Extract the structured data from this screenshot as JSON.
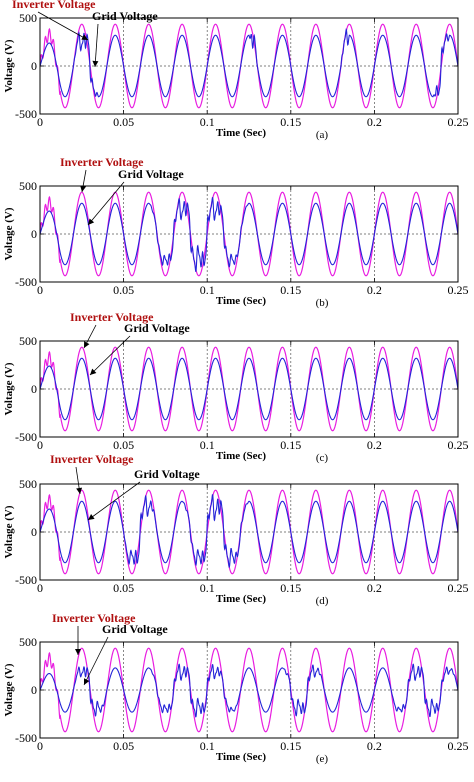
{
  "chart_data": [
    {
      "type": "line",
      "panel_label": "(a)",
      "xlabel": "Time (Sec)",
      "ylabel": "Voltage (V)",
      "xlim": [
        0,
        0.25
      ],
      "ylim": [
        -500,
        500
      ],
      "xticks": [
        "0",
        "0.05",
        "0.1",
        "0.15",
        "0.2",
        "0.25"
      ],
      "yticks": [
        "500",
        "0",
        "-500"
      ],
      "grid": true,
      "inverter_annotation": "Inverter Voltage",
      "grid_annotation": "Grid Voltage",
      "frequency_hz": 50,
      "series": [
        {
          "name": "Inverter Voltage",
          "color": "#e81ee0",
          "amplitude": 435,
          "waveform": "sine"
        },
        {
          "name": "Grid Voltage",
          "color": "#2424d8",
          "amplitude": 320,
          "waveform": "sine with distortion",
          "distortion_intervals": [
            [
              0.02,
              0.035
            ],
            [
              0.125,
              0.13
            ],
            [
              0.18,
              0.185
            ],
            [
              0.235,
              0.245
            ]
          ]
        }
      ]
    },
    {
      "type": "line",
      "panel_label": "(b)",
      "xlabel": "Time (Sec)",
      "ylabel": "Voltage (V)",
      "xlim": [
        0,
        0.25
      ],
      "ylim": [
        -500,
        500
      ],
      "xticks": [
        "0",
        "0.05",
        "0.1",
        "0.15",
        "0.2",
        "0.25"
      ],
      "yticks": [
        "500",
        "0",
        "-500"
      ],
      "grid": true,
      "inverter_annotation": "Inverter Voltage",
      "grid_annotation": "Grid Voltage",
      "frequency_hz": 50,
      "series": [
        {
          "name": "Inverter Voltage",
          "color": "#e81ee0",
          "amplitude": 435,
          "waveform": "sine"
        },
        {
          "name": "Grid Voltage",
          "color": "#2424d8",
          "amplitude": 320,
          "waveform": "sine with distortion",
          "distortion_intervals": [
            [
              0.065,
              0.125
            ]
          ]
        }
      ]
    },
    {
      "type": "line",
      "panel_label": "(c)",
      "xlabel": "Time (Sec)",
      "ylabel": "Voltage (V)",
      "xlim": [
        0,
        0.25
      ],
      "ylim": [
        -500,
        500
      ],
      "xticks": [
        "0",
        "0.05",
        "0.1",
        "0.15",
        "0.2",
        "0.25"
      ],
      "yticks": [
        "500",
        "0",
        "-500"
      ],
      "grid": true,
      "inverter_annotation": "Inverter Voltage",
      "grid_annotation": "Grid Voltage",
      "frequency_hz": 50,
      "series": [
        {
          "name": "Inverter Voltage",
          "color": "#e81ee0",
          "amplitude": 435,
          "waveform": "sine"
        },
        {
          "name": "Grid Voltage",
          "color": "#2424d8",
          "amplitude": 320,
          "waveform": "sine",
          "distortion_intervals": []
        }
      ]
    },
    {
      "type": "line",
      "panel_label": "(d)",
      "xlabel": "Time (Sec)",
      "ylabel": "Voltage (V)",
      "xlim": [
        0,
        0.25
      ],
      "ylim": [
        -500,
        500
      ],
      "xticks": [
        "0",
        "0.05",
        "0.1",
        "0.15",
        "0.2",
        "0.25"
      ],
      "yticks": [
        "500",
        "0",
        "-500"
      ],
      "grid": true,
      "inverter_annotation": "Inverter Voltage",
      "grid_annotation": "Grid Voltage",
      "frequency_hz": 50,
      "series": [
        {
          "name": "Inverter Voltage",
          "color": "#e81ee0",
          "amplitude": 435,
          "waveform": "sine"
        },
        {
          "name": "Grid Voltage",
          "color": "#2424d8",
          "amplitude": 320,
          "waveform": "sine with distortion",
          "distortion_intervals": [
            [
              0.05,
              0.07
            ],
            [
              0.085,
              0.125
            ]
          ]
        }
      ]
    },
    {
      "type": "line",
      "panel_label": "(e)",
      "xlabel": "Time (Sec)",
      "ylabel": "Voltage (V)",
      "xlim": [
        0,
        0.25
      ],
      "ylim": [
        -500,
        500
      ],
      "xticks": [
        "0",
        "0.05",
        "0.1",
        "0.15",
        "0.2",
        "0.25"
      ],
      "yticks": [
        "500",
        "0",
        "-500"
      ],
      "grid": true,
      "inverter_annotation": "Inverter Voltage",
      "grid_annotation": "Grid Voltage",
      "frequency_hz": 50,
      "series": [
        {
          "name": "Inverter Voltage",
          "color": "#e81ee0",
          "amplitude": 435,
          "waveform": "sine"
        },
        {
          "name": "Grid Voltage",
          "color": "#2424d8",
          "amplitude": 230,
          "waveform": "sine with distortion",
          "distortion_intervals": [
            [
              0.02,
              0.04
            ],
            [
              0.065,
              0.12
            ],
            [
              0.145,
              0.17
            ],
            [
              0.21,
              0.25
            ]
          ]
        }
      ]
    }
  ]
}
